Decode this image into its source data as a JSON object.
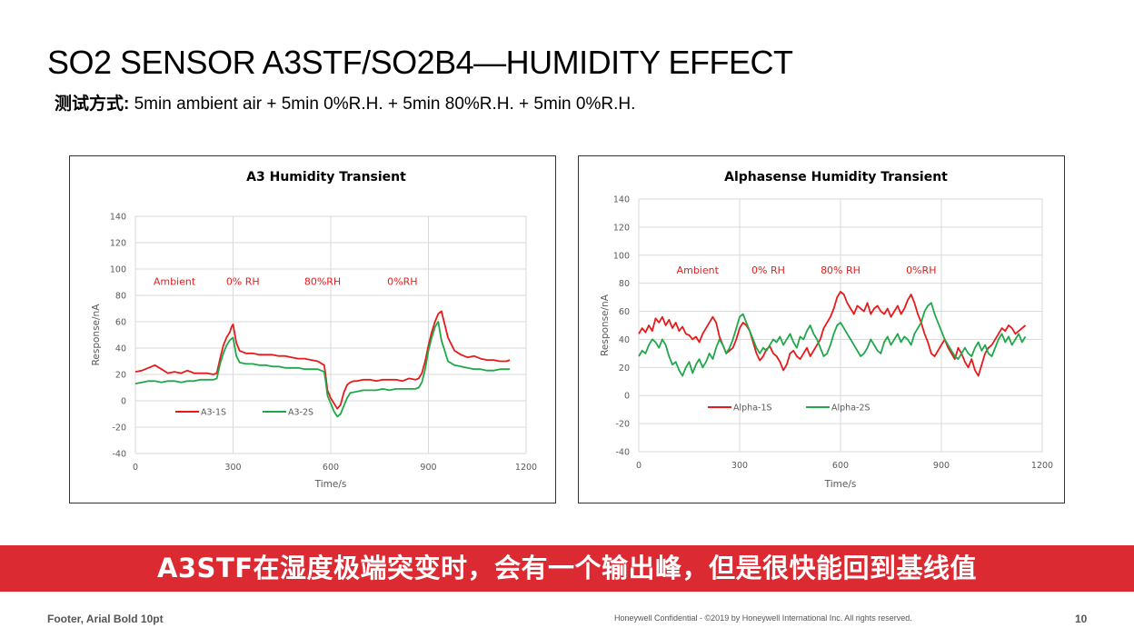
{
  "slide": {
    "title": "SO2 SENSOR A3STF/SO2B4—HUMIDITY EFFECT",
    "subtitle_label": "测试方式:",
    "subtitle_text": " 5min ambient air + 5min 0%R.H. + 5min 80%R.H. + 5min 0%R.H.",
    "banner": "A3STF在湿度极端突变时，会有一个输出峰，但是很快能回到基线值",
    "footer_left": "Footer, Arial Bold 10pt",
    "footer_mid": "Honeywell Confidential - ©2019 by Honeywell International Inc. All rights reserved.",
    "page_number": "10"
  },
  "chart_data": [
    {
      "type": "line",
      "title": "A3 Humidity Transient",
      "xlabel": "Time/s",
      "ylabel": "Response/nA",
      "xlim": [
        0,
        1200
      ],
      "ylim": [
        -40,
        140
      ],
      "xticks": [
        0,
        300,
        600,
        900,
        1200
      ],
      "yticks": [
        -40,
        -20,
        0,
        20,
        40,
        60,
        80,
        100,
        120,
        140
      ],
      "grid": true,
      "legend_position": "lower-left",
      "annotations": [
        {
          "text": "Ambient",
          "x": 120,
          "y": 88
        },
        {
          "text": "0% RH",
          "x": 330,
          "y": 88
        },
        {
          "text": "80%RH",
          "x": 575,
          "y": 88
        },
        {
          "text": "0%RH",
          "x": 820,
          "y": 88
        }
      ],
      "annotation_color": "#e02020",
      "series": [
        {
          "name": "A3-1S",
          "color": "#e8191a",
          "x": [
            0,
            20,
            40,
            60,
            80,
            100,
            120,
            140,
            160,
            180,
            200,
            220,
            240,
            250,
            260,
            270,
            280,
            290,
            295,
            300,
            310,
            320,
            340,
            360,
            380,
            400,
            420,
            440,
            460,
            480,
            500,
            520,
            540,
            560,
            580,
            585,
            590,
            600,
            610,
            620,
            630,
            640,
            650,
            660,
            670,
            680,
            700,
            720,
            740,
            760,
            780,
            800,
            820,
            840,
            860,
            870,
            880,
            890,
            900,
            910,
            920,
            930,
            940,
            960,
            980,
            1000,
            1020,
            1040,
            1060,
            1080,
            1100,
            1120,
            1140,
            1150
          ],
          "y": [
            22,
            23,
            25,
            27,
            24,
            21,
            22,
            21,
            23,
            21,
            21,
            21,
            20,
            21,
            32,
            42,
            48,
            52,
            56,
            58,
            44,
            38,
            36,
            36,
            35,
            35,
            35,
            34,
            34,
            33,
            32,
            32,
            31,
            30,
            27,
            18,
            8,
            2,
            -2,
            -6,
            -3,
            6,
            12,
            14,
            15,
            15,
            16,
            16,
            15,
            16,
            16,
            16,
            15,
            17,
            16,
            17,
            21,
            30,
            42,
            52,
            60,
            66,
            68,
            48,
            38,
            35,
            33,
            34,
            32,
            31,
            31,
            30,
            30,
            31
          ]
        },
        {
          "name": "A3-2S",
          "color": "#1ea84a",
          "x": [
            0,
            20,
            40,
            60,
            80,
            100,
            120,
            140,
            160,
            180,
            200,
            220,
            240,
            250,
            260,
            270,
            280,
            290,
            300,
            310,
            320,
            340,
            360,
            380,
            400,
            420,
            440,
            460,
            480,
            500,
            520,
            540,
            560,
            580,
            585,
            590,
            600,
            610,
            620,
            630,
            640,
            650,
            660,
            680,
            700,
            720,
            740,
            760,
            780,
            800,
            820,
            840,
            860,
            870,
            880,
            890,
            900,
            910,
            920,
            930,
            940,
            960,
            980,
            1000,
            1020,
            1040,
            1060,
            1080,
            1100,
            1120,
            1140,
            1150
          ],
          "y": [
            13,
            14,
            15,
            15,
            14,
            15,
            15,
            14,
            15,
            15,
            16,
            16,
            16,
            17,
            28,
            36,
            42,
            46,
            48,
            34,
            29,
            28,
            28,
            27,
            27,
            26,
            26,
            25,
            25,
            25,
            24,
            24,
            24,
            22,
            14,
            4,
            -2,
            -8,
            -12,
            -10,
            -4,
            2,
            6,
            7,
            8,
            8,
            8,
            9,
            8,
            9,
            9,
            9,
            9,
            10,
            14,
            24,
            38,
            48,
            56,
            60,
            46,
            30,
            27,
            26,
            25,
            24,
            24,
            23,
            23,
            24,
            24,
            24
          ]
        }
      ]
    },
    {
      "type": "line",
      "title": "Alphasense Humidity Transient",
      "xlabel": "Time/s",
      "ylabel": "Response/nA",
      "xlim": [
        0,
        1200
      ],
      "ylim": [
        -40,
        140
      ],
      "xticks": [
        0,
        300,
        600,
        900,
        1200
      ],
      "yticks": [
        -40,
        -20,
        0,
        20,
        40,
        60,
        80,
        100,
        120,
        140
      ],
      "grid": true,
      "legend_position": "lower-center",
      "annotations": [
        {
          "text": "Ambient",
          "x": 175,
          "y": 87
        },
        {
          "text": "0% RH",
          "x": 385,
          "y": 87
        },
        {
          "text": "80% RH",
          "x": 600,
          "y": 87
        },
        {
          "text": "0%RH",
          "x": 840,
          "y": 87
        }
      ],
      "annotation_color": "#e02020",
      "series": [
        {
          "name": "Alpha-1S",
          "color": "#e8191a",
          "x": [
            0,
            10,
            20,
            30,
            40,
            50,
            60,
            70,
            80,
            90,
            100,
            110,
            120,
            130,
            140,
            150,
            160,
            170,
            180,
            190,
            200,
            210,
            220,
            230,
            240,
            250,
            260,
            270,
            280,
            290,
            300,
            310,
            320,
            330,
            340,
            350,
            360,
            370,
            380,
            390,
            400,
            410,
            420,
            430,
            440,
            450,
            460,
            470,
            480,
            490,
            500,
            510,
            520,
            530,
            540,
            550,
            560,
            570,
            580,
            590,
            600,
            610,
            620,
            630,
            640,
            650,
            660,
            670,
            680,
            690,
            700,
            710,
            720,
            730,
            740,
            750,
            760,
            770,
            780,
            790,
            800,
            810,
            820,
            830,
            840,
            850,
            860,
            870,
            880,
            890,
            900,
            910,
            920,
            930,
            940,
            950,
            960,
            970,
            980,
            990,
            1000,
            1010,
            1020,
            1030,
            1040,
            1050,
            1060,
            1070,
            1080,
            1090,
            1100,
            1110,
            1120,
            1130,
            1140,
            1150
          ],
          "y": [
            44,
            48,
            45,
            50,
            46,
            55,
            52,
            56,
            50,
            54,
            48,
            52,
            46,
            49,
            44,
            43,
            40,
            42,
            38,
            44,
            48,
            52,
            56,
            52,
            42,
            36,
            30,
            32,
            34,
            40,
            48,
            52,
            50,
            46,
            38,
            30,
            25,
            28,
            33,
            35,
            30,
            28,
            24,
            18,
            22,
            30,
            32,
            28,
            26,
            30,
            34,
            28,
            32,
            36,
            40,
            48,
            52,
            56,
            62,
            70,
            74,
            72,
            66,
            62,
            58,
            64,
            62,
            60,
            66,
            58,
            62,
            64,
            60,
            58,
            62,
            56,
            60,
            64,
            58,
            62,
            68,
            72,
            66,
            58,
            52,
            44,
            38,
            30,
            28,
            32,
            36,
            40,
            34,
            30,
            26,
            34,
            30,
            24,
            20,
            26,
            18,
            14,
            22,
            30,
            34,
            36,
            40,
            44,
            48,
            46,
            50,
            48,
            44,
            46,
            48,
            50
          ]
        },
        {
          "name": "Alpha-2S",
          "color": "#1ea84a",
          "x": [
            0,
            10,
            20,
            30,
            40,
            50,
            60,
            70,
            80,
            90,
            100,
            110,
            120,
            130,
            140,
            150,
            160,
            170,
            180,
            190,
            200,
            210,
            220,
            230,
            240,
            250,
            260,
            270,
            280,
            290,
            300,
            310,
            320,
            330,
            340,
            350,
            360,
            370,
            380,
            390,
            400,
            410,
            420,
            430,
            440,
            450,
            460,
            470,
            480,
            490,
            500,
            510,
            520,
            530,
            540,
            550,
            560,
            570,
            580,
            590,
            600,
            610,
            620,
            630,
            640,
            650,
            660,
            670,
            680,
            690,
            700,
            710,
            720,
            730,
            740,
            750,
            760,
            770,
            780,
            790,
            800,
            810,
            820,
            830,
            840,
            850,
            860,
            870,
            880,
            890,
            900,
            910,
            920,
            930,
            940,
            950,
            960,
            970,
            980,
            990,
            1000,
            1010,
            1020,
            1030,
            1040,
            1050,
            1060,
            1070,
            1080,
            1090,
            1100,
            1110,
            1120,
            1130,
            1140,
            1150
          ],
          "y": [
            28,
            32,
            30,
            36,
            40,
            38,
            34,
            40,
            36,
            28,
            22,
            24,
            18,
            14,
            20,
            24,
            16,
            22,
            26,
            20,
            24,
            30,
            26,
            34,
            40,
            36,
            30,
            34,
            40,
            48,
            56,
            58,
            52,
            46,
            40,
            34,
            30,
            34,
            32,
            36,
            40,
            38,
            42,
            36,
            40,
            44,
            38,
            34,
            42,
            40,
            46,
            50,
            44,
            40,
            34,
            28,
            30,
            36,
            44,
            50,
            52,
            48,
            44,
            40,
            36,
            32,
            28,
            30,
            34,
            40,
            36,
            32,
            30,
            38,
            42,
            36,
            40,
            44,
            38,
            42,
            40,
            36,
            44,
            48,
            52,
            60,
            64,
            66,
            58,
            52,
            46,
            40,
            36,
            32,
            28,
            26,
            30,
            34,
            30,
            28,
            34,
            38,
            32,
            36,
            30,
            28,
            34,
            40,
            44,
            38,
            42,
            36,
            40,
            44,
            38,
            42
          ]
        }
      ]
    }
  ]
}
